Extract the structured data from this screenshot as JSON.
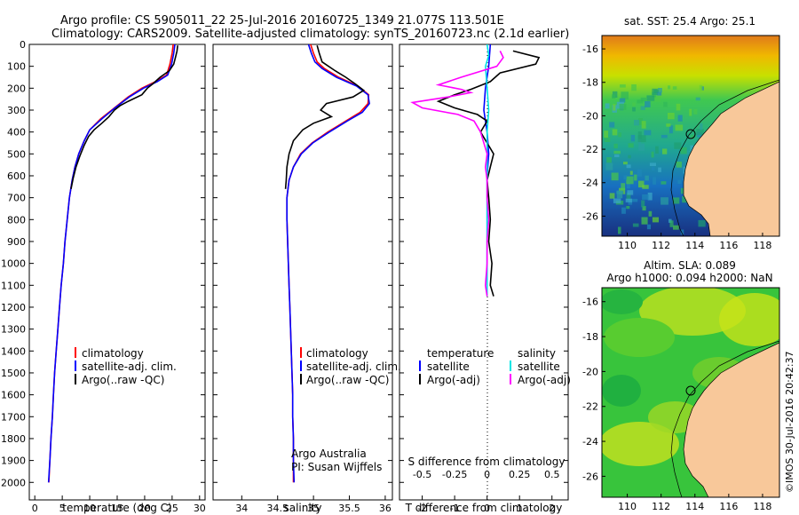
{
  "header": {
    "line1": "Argo profile: CS 5905011_22 25-Jul-2016 20160725_1349 21.077S 113.501E",
    "line2": "Climatology: CARS2009. Satellite-adjusted climatology: synTS_20160723.nc (2.1d earlier)"
  },
  "colors": {
    "climatology": "#ff0000",
    "satellite": "#0000ff",
    "argo": "#000000",
    "sat_salinity": "#00e5e5",
    "argo_adj_salinity": "#ff00ff",
    "land": "#f8c89a"
  },
  "chart_data": [
    {
      "type": "line",
      "id": "temperature-profile",
      "xlabel": "temperature (deg C)",
      "ylabel": "",
      "xlim": [
        -1,
        31
      ],
      "ylim": [
        2080,
        0
      ],
      "xticks": [
        "0",
        "5",
        "10",
        "15",
        "20",
        "25",
        "30"
      ],
      "yticks": [
        "0",
        "100",
        "200",
        "300",
        "400",
        "500",
        "600",
        "700",
        "800",
        "900",
        "1000",
        "1100",
        "1200",
        "1300",
        "1400",
        "1500",
        "1600",
        "1700",
        "1800",
        "1900",
        "2000"
      ],
      "legend": [
        "climatology",
        "satellite-adj. clim.",
        "Argo(..raw -QC)"
      ],
      "series": [
        {
          "name": "climatology",
          "color": "#ff0000",
          "points": [
            [
              25.2,
              0
            ],
            [
              25,
              40
            ],
            [
              24.6,
              90
            ],
            [
              24,
              140
            ],
            [
              22,
              170
            ],
            [
              19.5,
              200
            ],
            [
              17,
              240
            ],
            [
              14.5,
              290
            ],
            [
              12,
              340
            ],
            [
              10,
              390
            ],
            [
              9,
              440
            ],
            [
              8,
              500
            ],
            [
              7.3,
              560
            ],
            [
              6.8,
              620
            ],
            [
              6.3,
              700
            ],
            [
              5.9,
              800
            ],
            [
              5.5,
              900
            ],
            [
              5.2,
              1000
            ],
            [
              4.8,
              1100
            ],
            [
              4.5,
              1200
            ],
            [
              4.2,
              1300
            ],
            [
              3.9,
              1400
            ],
            [
              3.6,
              1500
            ],
            [
              3.4,
              1600
            ],
            [
              3.2,
              1700
            ],
            [
              2.95,
              1800
            ],
            [
              2.75,
              1900
            ],
            [
              2.55,
              2000
            ]
          ]
        },
        {
          "name": "satellite-adj. clim.",
          "color": "#0000ff",
          "points": [
            [
              25.5,
              0
            ],
            [
              25.3,
              40
            ],
            [
              24.9,
              90
            ],
            [
              24.2,
              140
            ],
            [
              22.3,
              170
            ],
            [
              19.8,
              200
            ],
            [
              17.2,
              240
            ],
            [
              14.6,
              290
            ],
            [
              12.2,
              340
            ],
            [
              10,
              390
            ],
            [
              9,
              440
            ],
            [
              8,
              500
            ],
            [
              7.3,
              560
            ],
            [
              6.8,
              620
            ],
            [
              6.3,
              700
            ],
            [
              5.9,
              800
            ],
            [
              5.5,
              900
            ],
            [
              5.2,
              1000
            ],
            [
              4.8,
              1100
            ],
            [
              4.5,
              1200
            ],
            [
              4.2,
              1300
            ],
            [
              3.9,
              1400
            ],
            [
              3.6,
              1500
            ],
            [
              3.4,
              1600
            ],
            [
              3.2,
              1700
            ],
            [
              2.95,
              1800
            ],
            [
              2.75,
              1900
            ],
            [
              2.5,
              2000
            ]
          ]
        },
        {
          "name": "Argo(..raw -QC)",
          "color": "#000000",
          "points": [
            [
              26,
              5
            ],
            [
              25.9,
              30
            ],
            [
              25.6,
              60
            ],
            [
              25.3,
              90
            ],
            [
              24.5,
              120
            ],
            [
              22.8,
              150
            ],
            [
              21.5,
              180
            ],
            [
              20.5,
              200
            ],
            [
              19.5,
              230
            ],
            [
              17,
              260
            ],
            [
              15.5,
              280
            ],
            [
              14.5,
              300
            ],
            [
              13.5,
              330
            ],
            [
              12.2,
              360
            ],
            [
              10.8,
              390
            ],
            [
              9.8,
              420
            ],
            [
              9,
              460
            ],
            [
              8.2,
              510
            ],
            [
              7.5,
              560
            ],
            [
              7,
              610
            ],
            [
              6.6,
              660
            ]
          ]
        }
      ]
    },
    {
      "type": "line",
      "id": "salinity-profile",
      "xlabel": "salinity",
      "xlim": [
        33.6,
        36.1
      ],
      "ylim": [
        2080,
        0
      ],
      "xticks": [
        "34",
        "34.5",
        "35",
        "35.5",
        "36"
      ],
      "legend": [
        "climatology",
        "satellite-adj. clim.",
        "Argo(..raw -QC)"
      ],
      "annotation": [
        "Argo Australia",
        "PI: Susan Wijffels"
      ],
      "series": [
        {
          "name": "climatology",
          "color": "#ff0000",
          "points": [
            [
              34.96,
              0
            ],
            [
              35.0,
              40
            ],
            [
              35.05,
              80
            ],
            [
              35.15,
              110
            ],
            [
              35.35,
              150
            ],
            [
              35.62,
              190
            ],
            [
              35.77,
              230
            ],
            [
              35.76,
              270
            ],
            [
              35.65,
              310
            ],
            [
              35.45,
              350
            ],
            [
              35.2,
              400
            ],
            [
              34.98,
              450
            ],
            [
              34.82,
              500
            ],
            [
              34.72,
              560
            ],
            [
              34.66,
              620
            ],
            [
              34.63,
              700
            ],
            [
              34.63,
              800
            ],
            [
              34.64,
              900
            ],
            [
              34.65,
              1000
            ],
            [
              34.66,
              1100
            ],
            [
              34.67,
              1200
            ],
            [
              34.68,
              1300
            ],
            [
              34.69,
              1400
            ],
            [
              34.7,
              1500
            ],
            [
              34.71,
              1600
            ],
            [
              34.71,
              1700
            ],
            [
              34.72,
              1800
            ],
            [
              34.72,
              1900
            ],
            [
              34.72,
              2000
            ]
          ]
        },
        {
          "name": "satellite-adj. clim.",
          "color": "#0000ff",
          "points": [
            [
              34.93,
              0
            ],
            [
              34.97,
              40
            ],
            [
              35.02,
              80
            ],
            [
              35.12,
              110
            ],
            [
              35.32,
              150
            ],
            [
              35.6,
              190
            ],
            [
              35.76,
              230
            ],
            [
              35.78,
              270
            ],
            [
              35.68,
              310
            ],
            [
              35.47,
              350
            ],
            [
              35.22,
              400
            ],
            [
              34.99,
              450
            ],
            [
              34.83,
              500
            ],
            [
              34.72,
              560
            ],
            [
              34.66,
              620
            ],
            [
              34.63,
              700
            ],
            [
              34.63,
              800
            ],
            [
              34.64,
              900
            ],
            [
              34.65,
              1000
            ],
            [
              34.66,
              1100
            ],
            [
              34.67,
              1200
            ],
            [
              34.68,
              1300
            ],
            [
              34.69,
              1400
            ],
            [
              34.7,
              1500
            ],
            [
              34.71,
              1600
            ],
            [
              34.71,
              1700
            ],
            [
              34.72,
              1800
            ],
            [
              34.72,
              1900
            ],
            [
              34.73,
              2000
            ]
          ]
        },
        {
          "name": "Argo(..raw -QC)",
          "color": "#000000",
          "points": [
            [
              35.05,
              5
            ],
            [
              35.08,
              40
            ],
            [
              35.12,
              80
            ],
            [
              35.3,
              120
            ],
            [
              35.45,
              150
            ],
            [
              35.58,
              180
            ],
            [
              35.7,
              210
            ],
            [
              35.55,
              240
            ],
            [
              35.18,
              270
            ],
            [
              35.1,
              300
            ],
            [
              35.25,
              330
            ],
            [
              35.0,
              360
            ],
            [
              34.85,
              390
            ],
            [
              34.72,
              440
            ],
            [
              34.66,
              500
            ],
            [
              34.63,
              560
            ],
            [
              34.62,
              620
            ],
            [
              34.61,
              660
            ]
          ]
        }
      ]
    },
    {
      "type": "line",
      "id": "difference-profile",
      "xlabel": "T difference from climatology",
      "xlabel_top": "S difference from climatology",
      "xlim": [
        -2.7,
        2.5
      ],
      "ylim": [
        2080,
        0
      ],
      "xticks": [
        "-2",
        "-1",
        "0",
        "1",
        "2"
      ],
      "xticks_top": [
        "-0.5",
        "-0.25",
        "0",
        "0.25",
        "0.5"
      ],
      "legend_titles": [
        "temperature",
        "salinity"
      ],
      "legend": [
        "satellite",
        "Argo(-adj)",
        "satellite",
        "Argo(-adj)"
      ],
      "series": [
        {
          "name": "temperature satellite",
          "color": "#0000ff",
          "points": [
            [
              0.1,
              0
            ],
            [
              0.05,
              100
            ],
            [
              -0.05,
              200
            ],
            [
              -0.1,
              300
            ],
            [
              0,
              400
            ],
            [
              0.05,
              500
            ],
            [
              0,
              600
            ],
            [
              0,
              800
            ],
            [
              0,
              1000
            ],
            [
              0,
              1100
            ]
          ]
        },
        {
          "name": "temperature Argo(-adj)",
          "color": "#000000",
          "points": [
            [
              0.8,
              30
            ],
            [
              1.6,
              60
            ],
            [
              1.5,
              90
            ],
            [
              0.4,
              130
            ],
            [
              0.1,
              170
            ],
            [
              -0.5,
              205
            ],
            [
              -1,
              230
            ],
            [
              -1.5,
              260
            ],
            [
              -1,
              290
            ],
            [
              -0.3,
              320
            ],
            [
              0,
              350
            ],
            [
              -0.2,
              400
            ],
            [
              0,
              450
            ],
            [
              0.2,
              500
            ],
            [
              0.1,
              560
            ],
            [
              0,
              620
            ],
            [
              0.05,
              700
            ],
            [
              0.1,
              800
            ],
            [
              0.05,
              900
            ],
            [
              0.15,
              1000
            ],
            [
              0.1,
              1100
            ],
            [
              0.2,
              1150
            ]
          ]
        },
        {
          "name": "salinity satellite",
          "color": "#00e5e5",
          "points": [
            [
              0,
              0
            ],
            [
              0.05,
              50
            ],
            [
              -0.05,
              100
            ],
            [
              0,
              200
            ],
            [
              0.05,
              300
            ],
            [
              0,
              400
            ],
            [
              0,
              600
            ],
            [
              0,
              800
            ],
            [
              0,
              1000
            ],
            [
              0,
              1100
            ],
            [
              0,
              1150
            ]
          ]
        },
        {
          "name": "salinity Argo(-adj)",
          "color": "#ff00ff",
          "points": [
            [
              0.4,
              30
            ],
            [
              0.5,
              60
            ],
            [
              0.3,
              100
            ],
            [
              -0.8,
              150
            ],
            [
              -1.5,
              185
            ],
            [
              -0.8,
              205
            ],
            [
              -0.5,
              220
            ],
            [
              -1.2,
              240
            ],
            [
              -2.3,
              265
            ],
            [
              -2,
              290
            ],
            [
              -0.9,
              320
            ],
            [
              -0.4,
              350
            ],
            [
              -0.2,
              400
            ],
            [
              -0.1,
              450
            ],
            [
              0,
              500
            ],
            [
              -0.05,
              560
            ],
            [
              0,
              620
            ],
            [
              0,
              700
            ],
            [
              0.05,
              800
            ],
            [
              0,
              900
            ],
            [
              0,
              1000
            ],
            [
              -0.05,
              1100
            ],
            [
              0,
              1150
            ]
          ]
        }
      ]
    },
    {
      "type": "heatmap",
      "id": "sst-map",
      "title": "sat. SST: 25.4 Argo: 25.1",
      "xlim": [
        108.5,
        119
      ],
      "ylim": [
        -27.2,
        -15.2
      ],
      "xticks": [
        "110",
        "112",
        "114",
        "116",
        "118"
      ],
      "yticks": [
        "-16",
        "-18",
        "-20",
        "-22",
        "-24",
        "-26"
      ],
      "marker": [
        113.501,
        -21.077
      ]
    },
    {
      "type": "heatmap",
      "id": "sla-map",
      "title": "Altim. SLA: 0.089",
      "subtitle": "Argo h1000: 0.094 h2000: NaN",
      "xlim": [
        108.5,
        119
      ],
      "ylim": [
        -27.2,
        -15.2
      ],
      "xticks": [
        "110",
        "112",
        "114",
        "116",
        "118"
      ],
      "yticks": [
        "-16",
        "-18",
        "-20",
        "-22",
        "-24",
        "-26"
      ],
      "marker": [
        113.501,
        -21.077
      ]
    }
  ],
  "footer": {
    "stamp": "©IMOS 30-Jul-2016 20:42:37"
  }
}
